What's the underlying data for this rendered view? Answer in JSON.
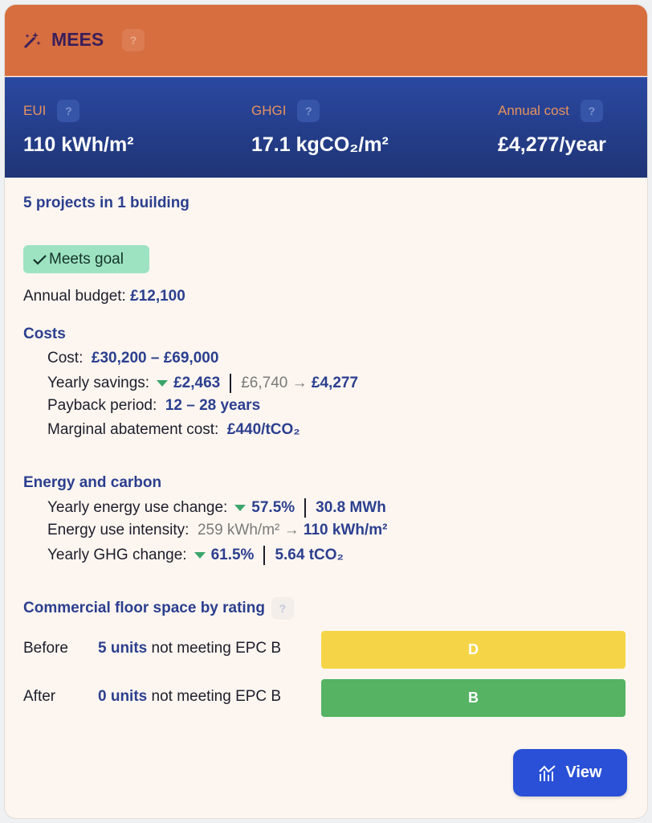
{
  "header": {
    "title": "MEES",
    "help": "?"
  },
  "metrics": [
    {
      "label": "EUI",
      "value": "110 kWh/m²"
    },
    {
      "label": "GHGI",
      "value": "17.1 kgCO₂/m²"
    },
    {
      "label": "Annual cost",
      "value": "£4,277/year"
    }
  ],
  "summary": "5 projects in 1 building",
  "badge": "Meets goal",
  "budget": {
    "label": "Annual budget:",
    "value": "£12,100"
  },
  "arrow": "→",
  "costs": {
    "heading": "Costs",
    "cost": {
      "label": "Cost:",
      "value": "£30,200 – £69,000"
    },
    "savings": {
      "label": "Yearly savings:",
      "value": "£2,463",
      "from": "£6,740",
      "to": "£4,277"
    },
    "payback": {
      "label": "Payback period:",
      "value": "12 – 28 years"
    },
    "mac": {
      "label": "Marginal abatement cost:",
      "value": "£440/tCO₂"
    }
  },
  "energy": {
    "heading": "Energy and carbon",
    "energy_change": {
      "label": "Yearly energy use change:",
      "value": "57.5%",
      "amount": "30.8 MWh"
    },
    "intensity": {
      "label": "Energy use intensity:",
      "from": "259 kWh/m²",
      "to": "110 kWh/m²"
    },
    "ghg_change": {
      "label": "Yearly GHG change:",
      "value": "61.5%",
      "amount": "5.64 tCO₂"
    }
  },
  "floor": {
    "heading": "Commercial floor space by rating",
    "rows": [
      {
        "label": "Before",
        "units": "5 units",
        "text": "not meeting EPC B",
        "rating": "D"
      },
      {
        "label": "After",
        "units": "0 units",
        "text": "not meeting EPC B",
        "rating": "B"
      }
    ]
  },
  "button": "View"
}
